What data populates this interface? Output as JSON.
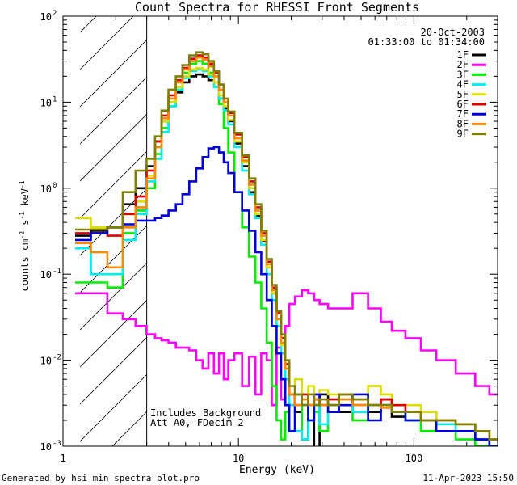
{
  "chart_data": {
    "type": "line",
    "title": "Count Spectra for RHESSI Front Segments",
    "xlabel": "Energy (keV)",
    "ylabel_parts": [
      "counts cm",
      "-2",
      " s",
      "-1",
      " keV",
      "-1"
    ],
    "xscale": "log",
    "yscale": "log",
    "xlim": [
      1,
      300
    ],
    "ylim": [
      0.001,
      100
    ],
    "x_ticks": [
      {
        "value": 1,
        "label": "1"
      },
      {
        "value": 10,
        "label": "10"
      },
      {
        "value": 100,
        "label": "100"
      }
    ],
    "y_ticks": [
      {
        "value": 0.001,
        "base": "10",
        "exp": "-3"
      },
      {
        "value": 0.01,
        "base": "10",
        "exp": "-2"
      },
      {
        "value": 0.1,
        "base": "10",
        "exp": "-1"
      },
      {
        "value": 1,
        "base": "10",
        "exp": "0"
      },
      {
        "value": 10,
        "base": "10",
        "exp": "1"
      },
      {
        "value": 100,
        "base": "10",
        "exp": "2"
      }
    ],
    "hatched_region": {
      "x_min": 1.25,
      "x_max": 3
    },
    "info_lines": [
      "20-Oct-2003",
      "01:33:00 to 01:34:00"
    ],
    "annotations": [
      "Includes Background",
      "Att A0, FDecim 2"
    ],
    "footer_left": "Generated by hsi_min_spectra_plot.pro",
    "footer_right": "11-Apr-2023 15:50",
    "series": [
      {
        "name": "1F",
        "color": "#000000",
        "x": [
          1.3,
          1.6,
          2.0,
          2.4,
          2.8,
          3.2,
          3.5,
          3.8,
          4.2,
          4.6,
          5.0,
          5.5,
          6.0,
          6.5,
          7.0,
          7.5,
          8.0,
          8.5,
          9.0,
          10,
          11,
          12,
          13,
          14,
          15,
          16,
          17,
          18,
          19,
          20,
          22,
          24,
          26,
          28,
          30,
          35,
          40,
          50,
          60,
          70,
          80,
          100,
          120,
          150,
          200,
          250,
          290
        ],
        "y": [
          0.28,
          0.32,
          0.35,
          0.65,
          1.0,
          1.8,
          3.5,
          6.0,
          9.0,
          13,
          17,
          20,
          21,
          20,
          18,
          15,
          11,
          8.5,
          6.0,
          3.3,
          1.8,
          0.9,
          0.48,
          0.24,
          0.12,
          0.06,
          0.035,
          0.018,
          0.009,
          0.004,
          0.0025,
          0.0012,
          0.003,
          0.0008,
          0.004,
          0.003,
          0.0025,
          0.003,
          0.0025,
          0.0035,
          0.0022,
          0.002,
          0.0025,
          0.002,
          0.0015,
          0.0012,
          0.001
        ]
      },
      {
        "name": "2F",
        "color": "#ff00ff",
        "x": [
          1.3,
          1.6,
          2.0,
          2.4,
          2.8,
          3.2,
          3.5,
          3.8,
          4.2,
          4.6,
          5.0,
          5.5,
          6.0,
          6.5,
          7.0,
          7.5,
          8.0,
          8.5,
          9.0,
          10,
          11,
          12,
          13,
          14,
          15,
          16,
          17,
          18,
          19,
          20,
          22,
          24,
          26,
          28,
          30,
          35,
          40,
          50,
          60,
          70,
          80,
          100,
          120,
          150,
          200,
          250,
          290
        ],
        "y": [
          0.06,
          0.06,
          0.035,
          0.03,
          0.025,
          0.02,
          0.018,
          0.017,
          0.016,
          0.014,
          0.014,
          0.013,
          0.01,
          0.008,
          0.012,
          0.007,
          0.012,
          0.006,
          0.01,
          0.012,
          0.005,
          0.011,
          0.004,
          0.012,
          0.01,
          0.003,
          0.014,
          0.0035,
          0.025,
          0.045,
          0.055,
          0.065,
          0.06,
          0.05,
          0.045,
          0.04,
          0.04,
          0.06,
          0.04,
          0.028,
          0.022,
          0.018,
          0.013,
          0.01,
          0.007,
          0.005,
          0.004
        ]
      },
      {
        "name": "3F",
        "color": "#00ee00",
        "x": [
          1.3,
          1.6,
          2.0,
          2.4,
          2.8,
          3.2,
          3.5,
          3.8,
          4.2,
          4.6,
          5.0,
          5.5,
          6.0,
          6.5,
          7.0,
          7.5,
          8.0,
          8.5,
          9.0,
          10,
          11,
          12,
          13,
          14,
          15,
          16,
          17,
          18,
          19,
          20,
          22,
          24,
          26,
          28,
          30,
          35,
          40,
          50,
          60,
          70,
          80,
          100,
          120,
          150,
          200,
          250,
          290
        ],
        "y": [
          0.08,
          0.08,
          0.07,
          0.3,
          0.55,
          1.0,
          2.5,
          5.0,
          10,
          15,
          22,
          28,
          30,
          28,
          22,
          15,
          9.5,
          5.0,
          2.6,
          0.9,
          0.35,
          0.16,
          0.08,
          0.04,
          0.016,
          0.005,
          0.002,
          0.0012,
          0.0025,
          0.003,
          0.0015,
          0.003,
          0.002,
          0.0025,
          0.0015,
          0.003,
          0.004,
          0.002,
          0.003,
          0.003,
          0.0025,
          0.002,
          0.0015,
          0.0015,
          0.0012,
          0.001,
          0.001
        ]
      },
      {
        "name": "4F",
        "color": "#00eeee",
        "x": [
          1.3,
          1.6,
          2.0,
          2.4,
          2.8,
          3.2,
          3.5,
          3.8,
          4.2,
          4.6,
          5.0,
          5.5,
          6.0,
          6.5,
          7.0,
          7.5,
          8.0,
          8.5,
          9.0,
          10,
          11,
          12,
          13,
          14,
          15,
          16,
          17,
          18,
          19,
          20,
          22,
          24,
          26,
          28,
          30,
          35,
          40,
          50,
          60,
          70,
          80,
          100,
          120,
          150,
          200,
          250,
          290
        ],
        "y": [
          0.2,
          0.1,
          0.1,
          0.25,
          0.5,
          1.2,
          2.2,
          4.5,
          9.0,
          14,
          19,
          23,
          24,
          23,
          20,
          15,
          11,
          8.0,
          5.5,
          3.0,
          1.6,
          0.85,
          0.45,
          0.22,
          0.1,
          0.05,
          0.025,
          0.012,
          0.006,
          0.003,
          0.0015,
          0.0012,
          0.002,
          0.003,
          0.0018,
          0.0025,
          0.0035,
          0.0025,
          0.003,
          0.003,
          0.0025,
          0.002,
          0.002,
          0.0018,
          0.0015,
          0.0012,
          0.001
        ]
      },
      {
        "name": "5F",
        "color": "#dddd00",
        "x": [
          1.3,
          1.6,
          2.0,
          2.4,
          2.8,
          3.2,
          3.5,
          3.8,
          4.2,
          4.6,
          5.0,
          5.5,
          6.0,
          6.5,
          7.0,
          7.5,
          8.0,
          8.5,
          9.0,
          10,
          11,
          12,
          13,
          14,
          15,
          16,
          17,
          18,
          19,
          20,
          22,
          24,
          26,
          28,
          30,
          35,
          40,
          50,
          60,
          70,
          80,
          100,
          120,
          150,
          200,
          250,
          290
        ],
        "y": [
          0.45,
          0.35,
          0.35,
          0.5,
          0.7,
          1.4,
          3.0,
          6.0,
          10,
          15,
          20,
          24,
          25,
          24,
          21,
          17,
          12,
          9.0,
          6.2,
          3.5,
          2.0,
          1.0,
          0.5,
          0.25,
          0.12,
          0.06,
          0.03,
          0.015,
          0.008,
          0.004,
          0.006,
          0.003,
          0.005,
          0.004,
          0.0045,
          0.004,
          0.004,
          0.0035,
          0.005,
          0.004,
          0.003,
          0.003,
          0.0025,
          0.002,
          0.0018,
          0.0015,
          0.0012
        ]
      },
      {
        "name": "6F",
        "color": "#dd0000",
        "x": [
          1.3,
          1.6,
          2.0,
          2.4,
          2.8,
          3.2,
          3.5,
          3.8,
          4.2,
          4.6,
          5.0,
          5.5,
          6.0,
          6.5,
          7.0,
          7.5,
          8.0,
          8.5,
          9.0,
          10,
          11,
          12,
          13,
          14,
          15,
          16,
          17,
          18,
          19,
          20,
          22,
          24,
          26,
          28,
          30,
          35,
          40,
          50,
          60,
          70,
          80,
          100,
          120,
          150,
          200,
          250,
          290
        ],
        "y": [
          0.3,
          0.3,
          0.28,
          0.5,
          0.8,
          1.6,
          3.5,
          7.0,
          12,
          18,
          25,
          32,
          35,
          33,
          28,
          22,
          16,
          11,
          7.5,
          4.2,
          2.3,
          1.2,
          0.6,
          0.3,
          0.14,
          0.07,
          0.035,
          0.018,
          0.009,
          0.004,
          0.003,
          0.004,
          0.003,
          0.0035,
          0.003,
          0.0035,
          0.004,
          0.003,
          0.003,
          0.0035,
          0.003,
          0.0025,
          0.002,
          0.002,
          0.0018,
          0.0015,
          0.0012
        ]
      },
      {
        "name": "7F",
        "color": "#0000dd",
        "x": [
          1.3,
          1.6,
          2.0,
          2.4,
          2.8,
          3.2,
          3.5,
          3.8,
          4.2,
          4.6,
          5.0,
          5.5,
          6.0,
          6.5,
          7.0,
          7.5,
          8.0,
          8.5,
          9.0,
          10,
          11,
          12,
          13,
          14,
          15,
          16,
          17,
          18,
          19,
          20,
          22,
          24,
          26,
          28,
          30,
          35,
          40,
          50,
          60,
          70,
          80,
          100,
          120,
          150,
          200,
          250,
          290
        ],
        "y": [
          0.25,
          0.3,
          0.35,
          0.38,
          0.42,
          0.42,
          0.45,
          0.48,
          0.55,
          0.65,
          0.85,
          1.2,
          1.7,
          2.3,
          2.9,
          3.0,
          2.6,
          2.0,
          1.5,
          0.9,
          0.55,
          0.32,
          0.18,
          0.1,
          0.05,
          0.025,
          0.012,
          0.006,
          0.003,
          0.0015,
          0.004,
          0.003,
          0.002,
          0.004,
          0.003,
          0.0025,
          0.003,
          0.004,
          0.002,
          0.003,
          0.0025,
          0.002,
          0.002,
          0.0015,
          0.0015,
          0.0012,
          0.001
        ]
      },
      {
        "name": "8F",
        "color": "#ff8800",
        "x": [
          1.3,
          1.6,
          2.0,
          2.4,
          2.8,
          3.2,
          3.5,
          3.8,
          4.2,
          4.6,
          5.0,
          5.5,
          6.0,
          6.5,
          7.0,
          7.5,
          8.0,
          8.5,
          9.0,
          10,
          11,
          12,
          13,
          14,
          15,
          16,
          17,
          18,
          19,
          20,
          22,
          24,
          26,
          28,
          30,
          35,
          40,
          50,
          60,
          70,
          80,
          100,
          120,
          150,
          200,
          250,
          290
        ],
        "y": [
          0.23,
          0.18,
          0.12,
          0.35,
          0.6,
          1.3,
          3.0,
          6.5,
          11,
          17,
          24,
          30,
          33,
          31,
          26,
          20,
          14,
          10,
          7.0,
          3.8,
          2.1,
          1.1,
          0.55,
          0.28,
          0.13,
          0.065,
          0.03,
          0.016,
          0.008,
          0.004,
          0.003,
          0.0035,
          0.003,
          0.0035,
          0.003,
          0.003,
          0.0035,
          0.003,
          0.003,
          0.0028,
          0.0025,
          0.0025,
          0.002,
          0.002,
          0.0018,
          0.0015,
          0.0012
        ]
      },
      {
        "name": "9F",
        "color": "#808000",
        "x": [
          1.3,
          1.6,
          2.0,
          2.4,
          2.8,
          3.2,
          3.5,
          3.8,
          4.2,
          4.6,
          5.0,
          5.5,
          6.0,
          6.5,
          7.0,
          7.5,
          8.0,
          8.5,
          9.0,
          10,
          11,
          12,
          13,
          14,
          15,
          16,
          17,
          18,
          19,
          20,
          22,
          24,
          26,
          28,
          30,
          35,
          40,
          50,
          60,
          70,
          80,
          100,
          120,
          150,
          200,
          250,
          290
        ],
        "y": [
          0.33,
          0.33,
          0.35,
          0.9,
          1.6,
          2.2,
          4.0,
          8.0,
          14,
          20,
          27,
          35,
          38,
          36,
          30,
          23,
          16,
          11,
          7.8,
          4.4,
          2.4,
          1.3,
          0.65,
          0.32,
          0.15,
          0.075,
          0.037,
          0.02,
          0.01,
          0.005,
          0.004,
          0.003,
          0.004,
          0.003,
          0.0035,
          0.003,
          0.004,
          0.0035,
          0.003,
          0.003,
          0.0025,
          0.0025,
          0.002,
          0.002,
          0.0018,
          0.0015,
          0.0012
        ]
      }
    ]
  }
}
